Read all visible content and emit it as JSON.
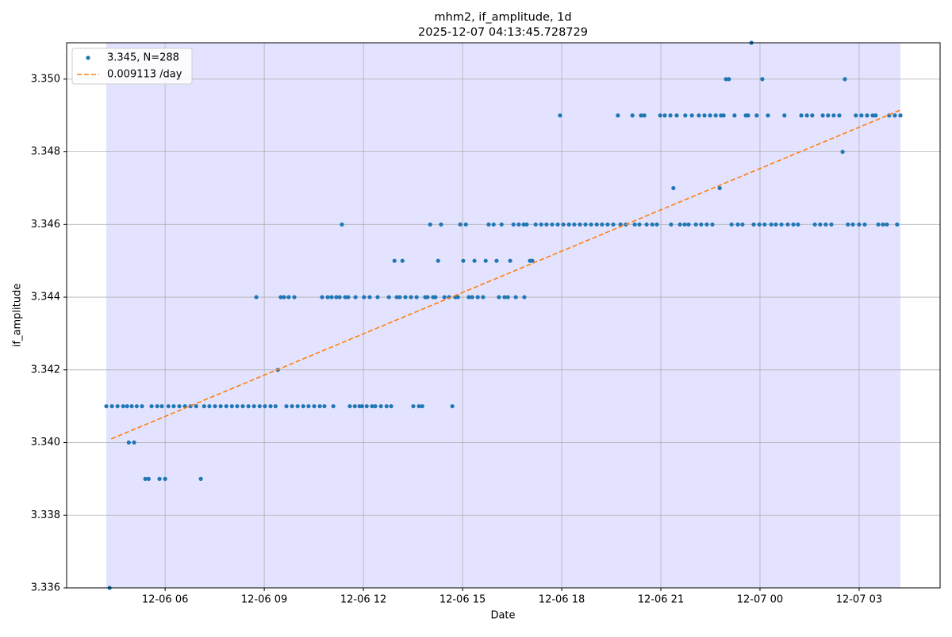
{
  "chart_data": {
    "type": "scatter",
    "title": "mhm2, if_amplitude, 1d",
    "subtitle": "2025-12-07 04:13:45.728729",
    "xlabel": "Date",
    "ylabel": "if_amplitude",
    "xlim": [
      3.02,
      29.45
    ],
    "ylim": [
      3.336,
      3.351
    ],
    "xticks": [
      {
        "value": 6,
        "label": "12-06 06"
      },
      {
        "value": 9,
        "label": "12-06 09"
      },
      {
        "value": 12,
        "label": "12-06 12"
      },
      {
        "value": 15,
        "label": "12-06 15"
      },
      {
        "value": 18,
        "label": "12-06 18"
      },
      {
        "value": 21,
        "label": "12-06 21"
      },
      {
        "value": 24,
        "label": "12-07 00"
      },
      {
        "value": 27,
        "label": "12-07 03"
      }
    ],
    "yticks": [
      3.336,
      3.338,
      {
        "value": 3.34,
        "label": "3.340"
      },
      3.342,
      3.344,
      3.346,
      3.348,
      {
        "value": 3.35,
        "label": "3.350"
      }
    ],
    "grid": true,
    "legend": "upper left",
    "span": [
      4.22,
      28.25
    ],
    "span_color": "#0000ff",
    "span_alpha": 0.11,
    "series": [
      {
        "name": "3.345, N=288",
        "color": "#1f77b4",
        "kind": "scatter",
        "x": [
          4.22,
          4.32,
          4.39,
          4.56,
          4.73,
          4.85,
          4.9,
          4.99,
          5.06,
          5.14,
          5.3,
          5.4,
          5.5,
          5.59,
          5.76,
          5.83,
          5.9,
          6.0,
          6.1,
          6.26,
          6.43,
          6.6,
          6.77,
          6.94,
          7.08,
          7.18,
          7.34,
          7.51,
          7.68,
          7.85,
          8.02,
          8.18,
          8.35,
          8.52,
          8.69,
          8.76,
          8.86,
          9.02,
          9.19,
          9.34,
          9.41,
          9.5,
          9.6,
          9.67,
          9.74,
          9.84,
          9.91,
          10.01,
          10.18,
          10.34,
          10.51,
          10.68,
          10.75,
          10.82,
          10.92,
          11.04,
          11.09,
          11.18,
          11.28,
          11.35,
          11.45,
          11.54,
          11.59,
          11.74,
          11.76,
          11.88,
          11.96,
          12.02,
          12.1,
          12.19,
          12.26,
          12.36,
          12.43,
          12.53,
          12.7,
          12.77,
          12.84,
          12.94,
          13.01,
          13.1,
          13.18,
          13.27,
          13.44,
          13.51,
          13.61,
          13.68,
          13.78,
          13.87,
          13.94,
          14.02,
          14.11,
          14.18,
          14.26,
          14.35,
          14.45,
          14.59,
          14.69,
          14.78,
          14.86,
          14.93,
          15.02,
          15.1,
          15.19,
          15.29,
          15.36,
          15.46,
          15.62,
          15.7,
          15.79,
          15.94,
          16.03,
          16.1,
          16.18,
          16.27,
          16.37,
          16.44,
          16.54,
          16.61,
          16.7,
          16.85,
          16.87,
          16.94,
          17.04,
          17.11,
          17.21,
          17.38,
          17.54,
          17.71,
          17.88,
          17.95,
          18.05,
          18.22,
          18.38,
          18.55,
          18.72,
          18.89,
          19.06,
          19.22,
          19.39,
          19.56,
          19.7,
          19.78,
          19.94,
          20.14,
          20.21,
          20.35,
          20.4,
          20.5,
          20.57,
          20.74,
          20.88,
          20.98,
          21.12,
          21.29,
          21.31,
          21.38,
          21.48,
          21.58,
          21.72,
          21.74,
          21.84,
          21.94,
          22.06,
          22.15,
          22.22,
          22.32,
          22.39,
          22.49,
          22.56,
          22.66,
          22.78,
          22.82,
          22.9,
          22.97,
          23.06,
          23.14,
          23.23,
          23.33,
          23.47,
          23.57,
          23.64,
          23.74,
          23.81,
          23.9,
          23.98,
          24.07,
          24.14,
          24.24,
          24.34,
          24.48,
          24.65,
          24.74,
          24.84,
          25.01,
          25.15,
          25.25,
          25.42,
          25.58,
          25.66,
          25.82,
          25.9,
          25.99,
          26.06,
          26.16,
          26.23,
          26.4,
          26.5,
          26.57,
          26.66,
          26.81,
          26.9,
          27.0,
          27.07,
          27.17,
          27.24,
          27.41,
          27.5,
          27.58,
          27.72,
          27.84,
          27.91,
          28.08,
          28.15,
          28.25
        ],
        "values": [
          3.341,
          3.336,
          3.341,
          3.341,
          3.341,
          3.341,
          3.34,
          3.341,
          3.34,
          3.341,
          3.341,
          3.339,
          3.339,
          3.341,
          3.341,
          3.339,
          3.341,
          3.339,
          3.341,
          3.341,
          3.341,
          3.341,
          3.341,
          3.341,
          3.339,
          3.341,
          3.341,
          3.341,
          3.341,
          3.341,
          3.341,
          3.341,
          3.341,
          3.341,
          3.341,
          3.344,
          3.341,
          3.341,
          3.341,
          3.341,
          3.342,
          3.344,
          3.344,
          3.341,
          3.344,
          3.341,
          3.344,
          3.341,
          3.341,
          3.341,
          3.341,
          3.341,
          3.344,
          3.341,
          3.344,
          3.344,
          3.341,
          3.344,
          3.344,
          3.346,
          3.344,
          3.344,
          3.341,
          3.341,
          3.344,
          3.341,
          3.341,
          3.344,
          3.341,
          3.344,
          3.341,
          3.341,
          3.344,
          3.341,
          3.341,
          3.344,
          3.341,
          3.345,
          3.344,
          3.344,
          3.345,
          3.344,
          3.344,
          3.341,
          3.344,
          3.341,
          3.341,
          3.344,
          3.344,
          3.346,
          3.344,
          3.344,
          3.345,
          3.346,
          3.344,
          3.344,
          3.341,
          3.344,
          3.344,
          3.346,
          3.345,
          3.346,
          3.344,
          3.344,
          3.345,
          3.344,
          3.344,
          3.345,
          3.346,
          3.346,
          3.345,
          3.344,
          3.346,
          3.344,
          3.344,
          3.345,
          3.346,
          3.344,
          3.346,
          3.346,
          3.344,
          3.346,
          3.345,
          3.345,
          3.346,
          3.346,
          3.346,
          3.346,
          3.346,
          3.349,
          3.346,
          3.346,
          3.346,
          3.346,
          3.346,
          3.346,
          3.346,
          3.346,
          3.346,
          3.346,
          3.349,
          3.346,
          3.346,
          3.349,
          3.346,
          3.346,
          3.349,
          3.349,
          3.346,
          3.346,
          3.346,
          3.349,
          3.349,
          3.349,
          3.346,
          3.347,
          3.349,
          3.346,
          3.346,
          3.349,
          3.346,
          3.349,
          3.346,
          3.349,
          3.346,
          3.349,
          3.346,
          3.349,
          3.346,
          3.349,
          3.347,
          3.349,
          3.349,
          3.35,
          3.35,
          3.346,
          3.349,
          3.346,
          3.346,
          3.349,
          3.349,
          3.351,
          3.346,
          3.349,
          3.346,
          3.35,
          3.346,
          3.349,
          3.346,
          3.346,
          3.346,
          3.349,
          3.346,
          3.346,
          3.346,
          3.349,
          3.349,
          3.349,
          3.346,
          3.346,
          3.349,
          3.346,
          3.349,
          3.346,
          3.349,
          3.349,
          3.348,
          3.35,
          3.346,
          3.346,
          3.349,
          3.346,
          3.349,
          3.346,
          3.349,
          3.349,
          3.349,
          3.346,
          3.346,
          3.346,
          3.349,
          3.349,
          3.346,
          3.349
        ]
      },
      {
        "name": "0.009113 /day",
        "color": "#ff7f0e",
        "kind": "line",
        "dashed": true,
        "x": [
          4.37,
          28.25
        ],
        "values": [
          3.3401,
          3.34915
        ]
      }
    ]
  }
}
